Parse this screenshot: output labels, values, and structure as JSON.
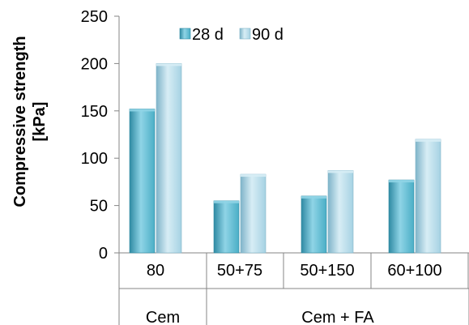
{
  "chart_data": {
    "type": "bar",
    "title": "",
    "xlabel": "",
    "ylabel_line1": "Compressive strength",
    "ylabel_line2": "[kPa]",
    "ylim": [
      0,
      250
    ],
    "y_ticks": [
      "0",
      "50",
      "100",
      "150",
      "200",
      "250"
    ],
    "categories": [
      "80",
      "50+75",
      "50+150",
      "60+100"
    ],
    "groups": [
      {
        "label": "Cem",
        "categories": [
          "80"
        ]
      },
      {
        "label": "Cem + FA",
        "categories": [
          "50+75",
          "50+150",
          "60+100"
        ]
      }
    ],
    "series": [
      {
        "name": "28 d",
        "values": [
          152,
          55,
          60,
          77
        ],
        "color": "#4aaec6",
        "color_light": "#8fd4e6",
        "color_dark": "#2f8aa3"
      },
      {
        "name": "90 d",
        "values": [
          200,
          83,
          87,
          120
        ],
        "color": "#a6d2e3",
        "color_light": "#d7edf5",
        "color_dark": "#7fb4c9"
      }
    ],
    "legend_position": "top",
    "grid": false
  }
}
